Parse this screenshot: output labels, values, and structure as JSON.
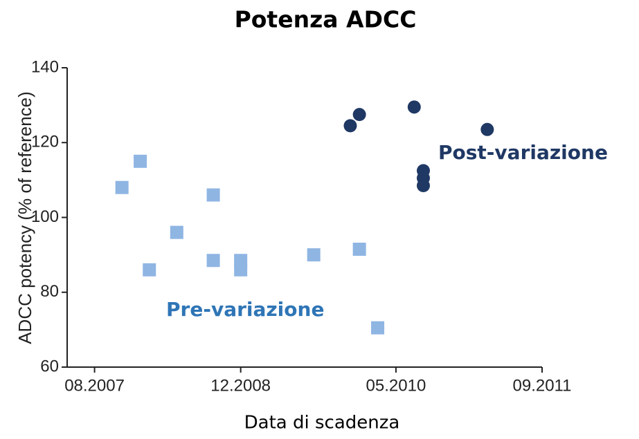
{
  "chart_data": {
    "type": "scatter",
    "title": "Potenza ADCC",
    "x_label": "Data di scadenza",
    "y_label": "ADCC potency (% of reference)",
    "xlim": [
      "05.2007",
      "09.2011"
    ],
    "xticks": [
      "08.2007",
      "12.2008",
      "05.2010",
      "09.2011"
    ],
    "ylim": [
      60,
      140
    ],
    "yticks": [
      60,
      80,
      100,
      120,
      140
    ],
    "grid": false,
    "series": [
      {
        "name": "Pre-variazione",
        "color": "#8fb5e3",
        "marker": "square",
        "x": [
          "11.2007",
          "01.2008",
          "02.2008",
          "05.2008",
          "09.2008",
          "09.2008",
          "12.2008",
          "12.2008",
          "08.2009",
          "01.2010",
          "03.2010"
        ],
        "values": [
          108,
          115,
          86,
          96,
          106,
          88.5,
          88.5,
          86,
          90,
          91.5,
          70.5
        ]
      },
      {
        "name": "Post-variazione",
        "color": "#1f3864",
        "marker": "circle",
        "x": [
          "12.2009",
          "01.2010",
          "07.2010",
          "08.2010",
          "08.2010",
          "08.2010",
          "03.2011"
        ],
        "values": [
          124.5,
          127.5,
          129.5,
          112.5,
          110.5,
          108.5,
          123.5
        ]
      }
    ]
  }
}
